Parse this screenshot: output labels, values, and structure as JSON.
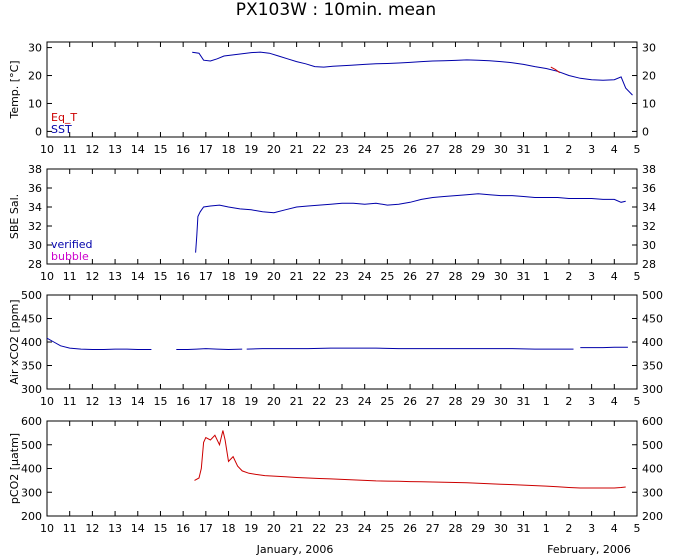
{
  "chart_data": {
    "title": "PX103W : 10min. mean",
    "type": "line",
    "x_ticks": [
      "10",
      "11",
      "12",
      "13",
      "14",
      "15",
      "16",
      "17",
      "18",
      "19",
      "20",
      "21",
      "22",
      "23",
      "24",
      "25",
      "26",
      "27",
      "28",
      "29",
      "30",
      "31",
      "1",
      "2",
      "3",
      "4",
      "5"
    ],
    "x_month_labels": [
      "January, 2006",
      "February, 2006"
    ],
    "panels": [
      {
        "ylabel": "Temp. [°C]",
        "ylim": [
          -2,
          32
        ],
        "yticks": [
          0,
          10,
          20,
          30
        ],
        "legend": [
          {
            "name": "Eq_T",
            "color": "#cc0000"
          },
          {
            "name": "SST",
            "color": "#0000aa"
          }
        ],
        "series": [
          {
            "name": "SST",
            "color": "#0000aa",
            "points": [
              [
                16.4,
                28.3
              ],
              [
                16.7,
                28.0
              ],
              [
                16.9,
                25.5
              ],
              [
                17.2,
                25.2
              ],
              [
                17.5,
                26.0
              ],
              [
                17.8,
                27.0
              ],
              [
                18.2,
                27.4
              ],
              [
                18.6,
                27.8
              ],
              [
                19.0,
                28.2
              ],
              [
                19.4,
                28.4
              ],
              [
                19.8,
                28.0
              ],
              [
                20.2,
                27.0
              ],
              [
                20.6,
                26.0
              ],
              [
                21.0,
                25.0
              ],
              [
                21.4,
                24.2
              ],
              [
                21.8,
                23.2
              ],
              [
                22.2,
                23.0
              ],
              [
                22.6,
                23.3
              ],
              [
                23.0,
                23.5
              ],
              [
                23.4,
                23.7
              ],
              [
                24.0,
                24.0
              ],
              [
                24.5,
                24.2
              ],
              [
                25.0,
                24.3
              ],
              [
                25.5,
                24.5
              ],
              [
                26.0,
                24.7
              ],
              [
                26.5,
                25.0
              ],
              [
                27.0,
                25.2
              ],
              [
                27.5,
                25.3
              ],
              [
                28.0,
                25.4
              ],
              [
                28.5,
                25.6
              ],
              [
                29.0,
                25.5
              ],
              [
                29.5,
                25.3
              ],
              [
                30.0,
                25.0
              ],
              [
                30.5,
                24.6
              ],
              [
                31.0,
                24.0
              ],
              [
                31.5,
                23.2
              ],
              [
                32.0,
                22.5
              ],
              [
                32.5,
                21.5
              ],
              [
                33.0,
                20.0
              ],
              [
                33.5,
                19.0
              ],
              [
                34.0,
                18.5
              ],
              [
                34.5,
                18.3
              ],
              [
                35.0,
                18.5
              ],
              [
                35.3,
                19.5
              ],
              [
                35.5,
                15.5
              ],
              [
                35.8,
                13.0
              ]
            ]
          },
          {
            "name": "Eq_T",
            "color": "#cc0000",
            "points": [
              [
                32.2,
                23.0
              ],
              [
                32.4,
                22.2
              ],
              [
                32.6,
                21.0
              ]
            ]
          }
        ]
      },
      {
        "ylabel": "SBE Sal.",
        "ylim": [
          28,
          38
        ],
        "yticks": [
          28,
          30,
          32,
          34,
          36,
          38
        ],
        "legend": [
          {
            "name": "verified",
            "color": "#0000aa"
          },
          {
            "name": "bubble",
            "color": "#cc00cc"
          }
        ],
        "series": [
          {
            "name": "verified",
            "color": "#0000aa",
            "points": [
              [
                16.55,
                29.2
              ],
              [
                16.6,
                31.0
              ],
              [
                16.65,
                33.0
              ],
              [
                16.75,
                33.5
              ],
              [
                16.9,
                34.0
              ],
              [
                17.2,
                34.1
              ],
              [
                17.6,
                34.2
              ],
              [
                18.0,
                34.0
              ],
              [
                18.5,
                33.8
              ],
              [
                19.0,
                33.7
              ],
              [
                19.5,
                33.5
              ],
              [
                20.0,
                33.4
              ],
              [
                20.5,
                33.7
              ],
              [
                21.0,
                34.0
              ],
              [
                21.5,
                34.1
              ],
              [
                22.0,
                34.2
              ],
              [
                22.5,
                34.3
              ],
              [
                23.0,
                34.4
              ],
              [
                23.5,
                34.4
              ],
              [
                24.0,
                34.3
              ],
              [
                24.5,
                34.4
              ],
              [
                25.0,
                34.2
              ],
              [
                25.5,
                34.3
              ],
              [
                26.0,
                34.5
              ],
              [
                26.5,
                34.8
              ],
              [
                27.0,
                35.0
              ],
              [
                27.5,
                35.1
              ],
              [
                28.0,
                35.2
              ],
              [
                28.5,
                35.3
              ],
              [
                29.0,
                35.4
              ],
              [
                29.5,
                35.3
              ],
              [
                30.0,
                35.2
              ],
              [
                30.5,
                35.2
              ],
              [
                31.0,
                35.1
              ],
              [
                31.5,
                35.0
              ],
              [
                32.0,
                35.0
              ],
              [
                32.5,
                35.0
              ],
              [
                33.0,
                34.9
              ],
              [
                33.5,
                34.9
              ],
              [
                34.0,
                34.9
              ],
              [
                34.5,
                34.8
              ],
              [
                35.0,
                34.8
              ],
              [
                35.3,
                34.5
              ],
              [
                35.5,
                34.6
              ]
            ]
          }
        ]
      },
      {
        "ylabel": "Air xCO2 [ppm]",
        "ylim": [
          300,
          500
        ],
        "yticks": [
          300,
          350,
          400,
          450,
          500
        ],
        "series": [
          {
            "name": "Air xCO2",
            "color": "#0000aa",
            "segments": [
              [
                [
                  10.0,
                  408
                ],
                [
                  10.3,
                  400
                ],
                [
                  10.6,
                  392
                ],
                [
                  11.0,
                  387
                ],
                [
                  11.5,
                  385
                ],
                [
                  12.0,
                  384
                ],
                [
                  12.5,
                  384
                ],
                [
                  13.0,
                  385
                ],
                [
                  13.5,
                  385
                ],
                [
                  14.0,
                  384
                ],
                [
                  14.6,
                  384
                ]
              ],
              [
                [
                  15.7,
                  384
                ],
                [
                  16.2,
                  384
                ],
                [
                  16.6,
                  385
                ],
                [
                  17.0,
                  386
                ],
                [
                  17.5,
                  385
                ],
                [
                  18.0,
                  384
                ],
                [
                  18.6,
                  385
                ]
              ],
              [
                [
                  18.8,
                  385
                ],
                [
                  19.5,
                  386
                ],
                [
                  20.5,
                  386
                ],
                [
                  21.5,
                  386
                ],
                [
                  22.5,
                  387
                ],
                [
                  23.5,
                  387
                ],
                [
                  24.5,
                  387
                ],
                [
                  25.5,
                  386
                ],
                [
                  26.5,
                  386
                ],
                [
                  27.5,
                  386
                ],
                [
                  28.5,
                  386
                ],
                [
                  29.5,
                  386
                ],
                [
                  30.5,
                  386
                ],
                [
                  31.5,
                  385
                ],
                [
                  32.5,
                  385
                ],
                [
                  33.2,
                  385
                ]
              ],
              [
                [
                  33.5,
                  388
                ],
                [
                  34.0,
                  388
                ],
                [
                  34.5,
                  388
                ],
                [
                  35.0,
                  389
                ],
                [
                  35.6,
                  389
                ]
              ]
            ]
          }
        ]
      },
      {
        "ylabel": "pCO2 [μatm]",
        "ylim": [
          200,
          600
        ],
        "yticks": [
          200,
          300,
          400,
          500,
          600
        ],
        "series": [
          {
            "name": "pCO2",
            "color": "#cc0000",
            "points": [
              [
                16.5,
                350
              ],
              [
                16.7,
                360
              ],
              [
                16.8,
                400
              ],
              [
                16.9,
                510
              ],
              [
                17.0,
                530
              ],
              [
                17.2,
                520
              ],
              [
                17.4,
                540
              ],
              [
                17.6,
                500
              ],
              [
                17.75,
                560
              ],
              [
                17.85,
                520
              ],
              [
                18.0,
                430
              ],
              [
                18.2,
                450
              ],
              [
                18.4,
                410
              ],
              [
                18.6,
                390
              ],
              [
                18.9,
                380
              ],
              [
                19.2,
                375
              ],
              [
                19.6,
                370
              ],
              [
                20.0,
                368
              ],
              [
                20.5,
                365
              ],
              [
                21.0,
                362
              ],
              [
                21.5,
                360
              ],
              [
                22.0,
                358
              ],
              [
                22.5,
                356
              ],
              [
                23.0,
                354
              ],
              [
                23.5,
                352
              ],
              [
                24.0,
                350
              ],
              [
                24.5,
                348
              ],
              [
                25.0,
                347
              ],
              [
                25.5,
                346
              ],
              [
                26.0,
                345
              ],
              [
                26.5,
                344
              ],
              [
                27.0,
                343
              ],
              [
                27.5,
                342
              ],
              [
                28.0,
                341
              ],
              [
                28.5,
                340
              ],
              [
                29.0,
                338
              ],
              [
                29.5,
                336
              ],
              [
                30.0,
                334
              ],
              [
                30.5,
                332
              ],
              [
                31.0,
                330
              ],
              [
                31.5,
                328
              ],
              [
                32.0,
                326
              ],
              [
                32.5,
                323
              ],
              [
                33.0,
                320
              ],
              [
                33.5,
                318
              ],
              [
                34.0,
                318
              ],
              [
                34.5,
                318
              ],
              [
                35.0,
                318
              ],
              [
                35.3,
                320
              ],
              [
                35.5,
                322
              ]
            ]
          }
        ]
      }
    ]
  }
}
